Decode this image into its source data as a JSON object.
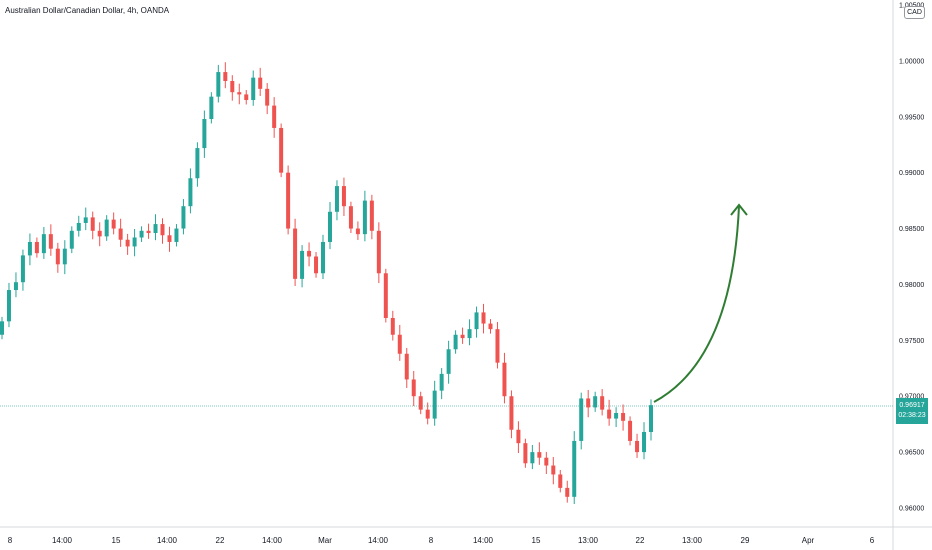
{
  "header": {
    "title": "Australian Dollar/Canadian Dollar, 4h, OANDA"
  },
  "axis": {
    "currency": "CAD",
    "y_ticks": [
      "1.00500",
      "1.00000",
      "0.99500",
      "0.99000",
      "0.98500",
      "0.98000",
      "0.97500",
      "0.97000",
      "0.96500",
      "0.96000"
    ],
    "x_ticks": [
      "8",
      "14:00",
      "15",
      "14:00",
      "22",
      "14:00",
      "Mar",
      "14:00",
      "8",
      "14:00",
      "15",
      "13:00",
      "22",
      "13:00",
      "29",
      "Apr",
      "6"
    ]
  },
  "price_label": {
    "price": "0.96917",
    "countdown": "02:38:23"
  },
  "colors": {
    "up": "#26a69a",
    "down": "#ef5350",
    "arrow": "#2f7d32",
    "price_line": "#26a69a"
  },
  "chart_data": {
    "type": "candlestick",
    "title": "Australian Dollar/Canadian Dollar, 4h, OANDA",
    "ylim": [
      0.9595,
      1.0075
    ],
    "y_axis_side": "right",
    "grid": false,
    "current_price": 0.96917,
    "annotation": "upward curved arrow projecting price rise from ~0.969 to ~0.987",
    "arrow_points": [
      [
        0.9692,
        0.9873
      ]
    ],
    "close_path": [
      0.9767,
      0.9795,
      0.9802,
      0.9826,
      0.9838,
      0.9828,
      0.9845,
      0.9832,
      0.9818,
      0.9832,
      0.9848,
      0.9855,
      0.986,
      0.9848,
      0.9843,
      0.9858,
      0.985,
      0.984,
      0.9834,
      0.9842,
      0.9848,
      0.9846,
      0.9854,
      0.9844,
      0.9838,
      0.985,
      0.987,
      0.9895,
      0.9922,
      0.9948,
      0.9968,
      0.999,
      0.9982,
      0.9972,
      0.997,
      0.9965,
      0.9985,
      0.9975,
      0.996,
      0.994,
      0.99,
      0.985,
      0.9805,
      0.983,
      0.9825,
      0.981,
      0.9838,
      0.9865,
      0.9888,
      0.987,
      0.985,
      0.9845,
      0.9875,
      0.9848,
      0.981,
      0.977,
      0.9755,
      0.9738,
      0.9715,
      0.97,
      0.9688,
      0.968,
      0.9705,
      0.972,
      0.9742,
      0.9755,
      0.9752,
      0.976,
      0.9775,
      0.9765,
      0.976,
      0.973,
      0.97,
      0.967,
      0.9658,
      0.964,
      0.965,
      0.9645,
      0.9638,
      0.963,
      0.9618,
      0.961,
      0.966,
      0.9698,
      0.969,
      0.97,
      0.9688,
      0.968,
      0.9685,
      0.9678,
      0.966,
      0.965,
      0.9668,
      0.9692
    ]
  }
}
